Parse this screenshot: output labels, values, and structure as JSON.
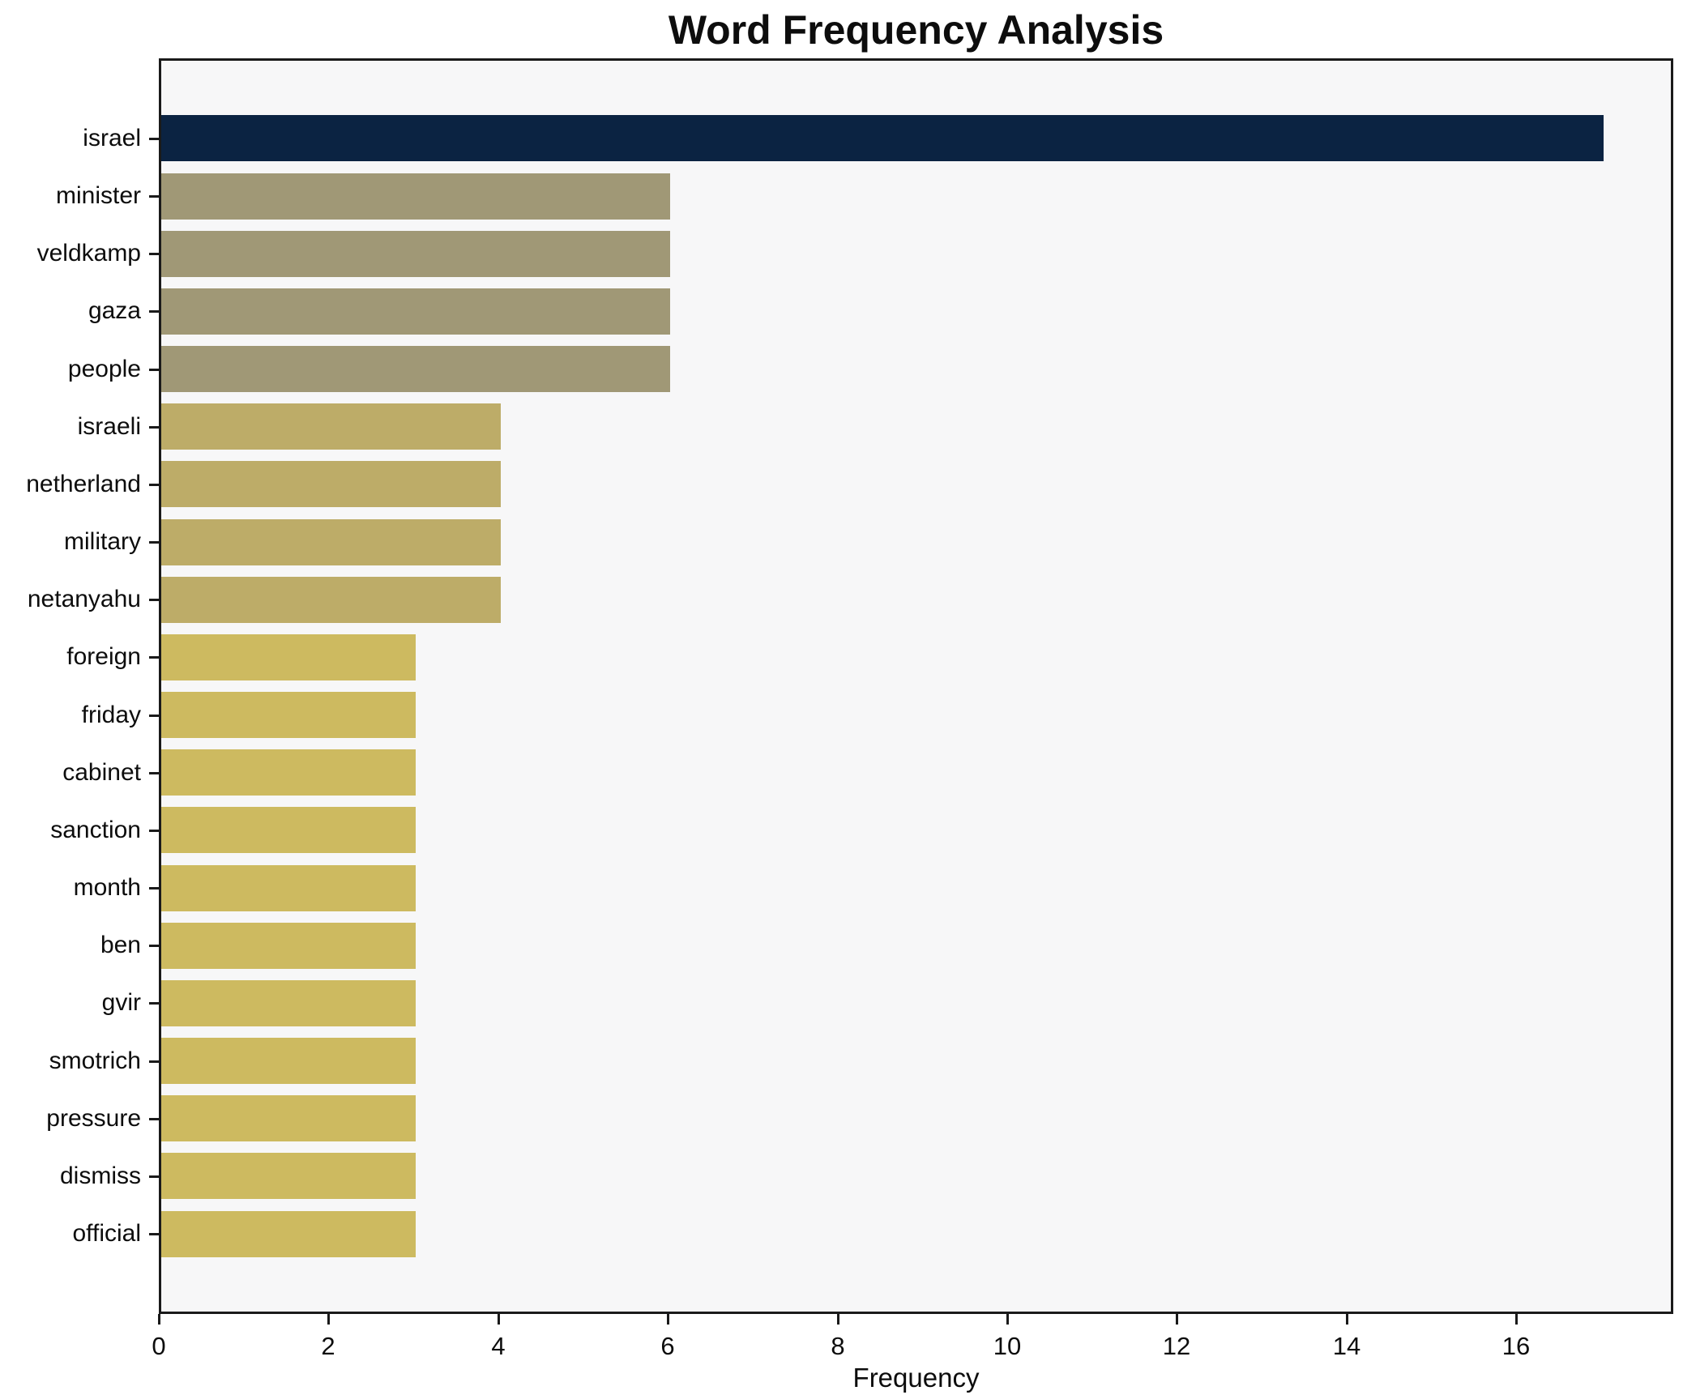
{
  "chart_data": {
    "type": "bar",
    "orientation": "horizontal",
    "title": "Word Frequency Analysis",
    "xlabel": "Frequency",
    "ylabel": "",
    "categories": [
      "israel",
      "minister",
      "veldkamp",
      "gaza",
      "people",
      "israeli",
      "netherland",
      "military",
      "netanyahu",
      "foreign",
      "friday",
      "cabinet",
      "sanction",
      "month",
      "ben",
      "gvir",
      "smotrich",
      "pressure",
      "dismiss",
      "official"
    ],
    "values": [
      17,
      6,
      6,
      6,
      6,
      4,
      4,
      4,
      4,
      3,
      3,
      3,
      3,
      3,
      3,
      3,
      3,
      3,
      3,
      3
    ],
    "bar_colors": [
      "#0b2342",
      "#a09876",
      "#a09876",
      "#a09876",
      "#a09876",
      "#bdac68",
      "#bdac68",
      "#bdac68",
      "#bdac68",
      "#cdba60",
      "#cdba60",
      "#cdba60",
      "#cdba60",
      "#cdba60",
      "#cdba60",
      "#cdba60",
      "#cdba60",
      "#cdba60",
      "#cdba60",
      "#cdba60"
    ],
    "xticks": [
      0,
      2,
      4,
      6,
      8,
      10,
      12,
      14,
      16
    ],
    "xlim": [
      0,
      17.85
    ],
    "grid": false,
    "legend": null,
    "plot_background": "#f7f7f8",
    "figure_background": "#ffffff",
    "spine_color": "#1a1a1a",
    "text_color": "#0d0d0d"
  }
}
